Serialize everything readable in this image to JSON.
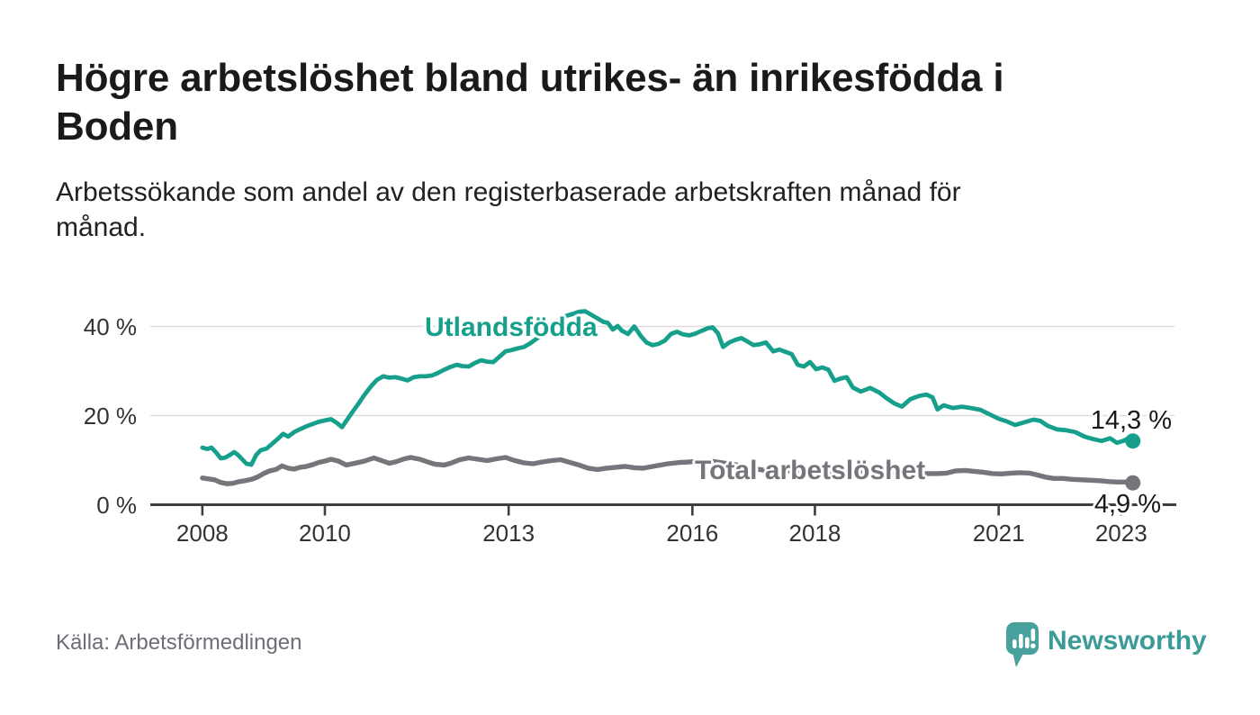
{
  "header": {
    "title": "Högre arbetslöshet bland utrikes- än inrikesfödda i Boden",
    "subtitle": "Arbetssökande som andel av den registerbaserade arbetskraften månad för månad."
  },
  "footer": {
    "source": "Källa: Arbetsförmedlingen",
    "brand": "Newsworthy",
    "brand_icon": "speech-bubble-bar-chart-icon"
  },
  "colors": {
    "accent_teal": "#16a08c",
    "series_gray": "#76757c",
    "grid": "#dcdcdc",
    "axis": "#3e3e3e",
    "tick_label": "#333333",
    "title_text": "#1a1a1a",
    "muted_text": "#6e6c77",
    "logo_teal": "#48a19d",
    "logo_text_teal": "#3b9b97"
  },
  "chart_data": {
    "type": "line",
    "title": "Högre arbetslöshet bland utrikes- än inrikesfödda i Boden",
    "subtitle": "Arbetssökande som andel av den registerbaserade arbetskraften månad för månad.",
    "xlabel": "",
    "ylabel": "",
    "unit": "%",
    "grid": "horizontal",
    "legend_position": "inline-labels",
    "xlim": [
      2007.15,
      2023.9
    ],
    "ylim": [
      0,
      44
    ],
    "x_ticks": [
      {
        "year": 2008,
        "label": "2008"
      },
      {
        "year": 2010,
        "label": "2010"
      },
      {
        "year": 2013,
        "label": "2013"
      },
      {
        "year": 2016,
        "label": "2016"
      },
      {
        "year": 2018,
        "label": "2018"
      },
      {
        "year": 2021,
        "label": "2021"
      },
      {
        "year": 2023,
        "label": "2023"
      }
    ],
    "y_ticks": [
      {
        "value": 0,
        "label": "0 %"
      },
      {
        "value": 20,
        "label": "20 %"
      },
      {
        "value": 40,
        "label": "40 %"
      }
    ],
    "series": [
      {
        "name": "Utlandsfödda",
        "color": "#16a08c",
        "line_width": 4.8,
        "end_label": "14,3 %",
        "end_value": 14.3,
        "points": [
          [
            2008.0,
            12.8
          ],
          [
            2008.08,
            12.5
          ],
          [
            2008.15,
            12.8
          ],
          [
            2008.22,
            11.8
          ],
          [
            2008.3,
            10.4
          ],
          [
            2008.38,
            10.6
          ],
          [
            2008.45,
            11.2
          ],
          [
            2008.52,
            11.8
          ],
          [
            2008.58,
            11.2
          ],
          [
            2008.65,
            10.2
          ],
          [
            2008.72,
            9.2
          ],
          [
            2008.8,
            9.0
          ],
          [
            2008.88,
            11.2
          ],
          [
            2008.95,
            12.2
          ],
          [
            2009.05,
            12.6
          ],
          [
            2009.15,
            13.8
          ],
          [
            2009.25,
            15.0
          ],
          [
            2009.32,
            15.9
          ],
          [
            2009.4,
            15.3
          ],
          [
            2009.5,
            16.3
          ],
          [
            2009.6,
            17.0
          ],
          [
            2009.7,
            17.6
          ],
          [
            2009.8,
            18.1
          ],
          [
            2009.9,
            18.6
          ],
          [
            2010.0,
            18.9
          ],
          [
            2010.1,
            19.2
          ],
          [
            2010.2,
            18.3
          ],
          [
            2010.28,
            17.4
          ],
          [
            2010.36,
            19.0
          ],
          [
            2010.45,
            20.8
          ],
          [
            2010.55,
            22.7
          ],
          [
            2010.65,
            24.7
          ],
          [
            2010.75,
            26.5
          ],
          [
            2010.85,
            28.0
          ],
          [
            2010.95,
            28.8
          ],
          [
            2011.05,
            28.5
          ],
          [
            2011.15,
            28.6
          ],
          [
            2011.25,
            28.3
          ],
          [
            2011.35,
            27.9
          ],
          [
            2011.45,
            28.6
          ],
          [
            2011.55,
            28.8
          ],
          [
            2011.65,
            28.8
          ],
          [
            2011.75,
            29.0
          ],
          [
            2011.85,
            29.6
          ],
          [
            2011.95,
            30.3
          ],
          [
            2012.05,
            30.9
          ],
          [
            2012.15,
            31.4
          ],
          [
            2012.25,
            31.1
          ],
          [
            2012.35,
            31.0
          ],
          [
            2012.45,
            31.8
          ],
          [
            2012.55,
            32.4
          ],
          [
            2012.65,
            32.1
          ],
          [
            2012.75,
            32.0
          ],
          [
            2012.85,
            33.2
          ],
          [
            2012.95,
            34.4
          ],
          [
            2013.05,
            34.7
          ],
          [
            2013.15,
            35.1
          ],
          [
            2013.25,
            35.4
          ],
          [
            2013.35,
            36.2
          ],
          [
            2013.45,
            37.2
          ],
          [
            2013.55,
            38.2
          ],
          [
            2013.65,
            39.4
          ],
          [
            2013.75,
            40.6
          ],
          [
            2013.85,
            41.8
          ],
          [
            2013.95,
            42.4
          ],
          [
            2014.05,
            42.8
          ],
          [
            2014.15,
            43.3
          ],
          [
            2014.25,
            43.4
          ],
          [
            2014.35,
            42.6
          ],
          [
            2014.45,
            41.8
          ],
          [
            2014.55,
            41.0
          ],
          [
            2014.62,
            40.8
          ],
          [
            2014.7,
            39.3
          ],
          [
            2014.78,
            40.1
          ],
          [
            2014.85,
            39.0
          ],
          [
            2014.95,
            38.3
          ],
          [
            2015.05,
            40.0
          ],
          [
            2015.16,
            37.8
          ],
          [
            2015.25,
            36.4
          ],
          [
            2015.35,
            35.8
          ],
          [
            2015.45,
            36.1
          ],
          [
            2015.55,
            36.8
          ],
          [
            2015.65,
            38.3
          ],
          [
            2015.75,
            38.8
          ],
          [
            2015.85,
            38.2
          ],
          [
            2015.95,
            38.0
          ],
          [
            2016.05,
            38.4
          ],
          [
            2016.15,
            39.0
          ],
          [
            2016.25,
            39.6
          ],
          [
            2016.33,
            39.8
          ],
          [
            2016.42,
            38.4
          ],
          [
            2016.5,
            35.4
          ],
          [
            2016.6,
            36.4
          ],
          [
            2016.7,
            37.0
          ],
          [
            2016.8,
            37.4
          ],
          [
            2016.9,
            36.6
          ],
          [
            2017.0,
            35.8
          ],
          [
            2017.1,
            36.0
          ],
          [
            2017.2,
            36.4
          ],
          [
            2017.32,
            34.4
          ],
          [
            2017.42,
            34.8
          ],
          [
            2017.52,
            34.3
          ],
          [
            2017.62,
            33.8
          ],
          [
            2017.72,
            31.4
          ],
          [
            2017.82,
            31.0
          ],
          [
            2017.92,
            32.0
          ],
          [
            2018.02,
            30.4
          ],
          [
            2018.12,
            30.8
          ],
          [
            2018.22,
            30.3
          ],
          [
            2018.32,
            27.8
          ],
          [
            2018.42,
            28.3
          ],
          [
            2018.52,
            28.6
          ],
          [
            2018.62,
            26.3
          ],
          [
            2018.75,
            25.4
          ],
          [
            2018.9,
            26.2
          ],
          [
            2019.05,
            25.2
          ],
          [
            2019.16,
            24.0
          ],
          [
            2019.3,
            22.7
          ],
          [
            2019.42,
            22.0
          ],
          [
            2019.56,
            23.7
          ],
          [
            2019.7,
            24.4
          ],
          [
            2019.82,
            24.7
          ],
          [
            2019.92,
            24.1
          ],
          [
            2020.0,
            21.4
          ],
          [
            2020.1,
            22.3
          ],
          [
            2020.25,
            21.7
          ],
          [
            2020.4,
            22.0
          ],
          [
            2020.55,
            21.7
          ],
          [
            2020.7,
            21.3
          ],
          [
            2020.85,
            20.3
          ],
          [
            2021.0,
            19.3
          ],
          [
            2021.13,
            18.7
          ],
          [
            2021.27,
            17.9
          ],
          [
            2021.42,
            18.5
          ],
          [
            2021.57,
            19.1
          ],
          [
            2021.68,
            18.8
          ],
          [
            2021.8,
            17.7
          ],
          [
            2021.95,
            16.9
          ],
          [
            2022.1,
            16.7
          ],
          [
            2022.25,
            16.3
          ],
          [
            2022.4,
            15.3
          ],
          [
            2022.55,
            14.7
          ],
          [
            2022.68,
            14.3
          ],
          [
            2022.82,
            14.9
          ],
          [
            2022.93,
            13.9
          ],
          [
            2023.03,
            14.3
          ],
          [
            2023.1,
            14.8
          ],
          [
            2023.19,
            14.3
          ]
        ]
      },
      {
        "name": "Total arbetslöshet",
        "color": "#76757c",
        "line_width": 5.4,
        "end_label": "4,9 %",
        "end_value": 4.9,
        "points": [
          [
            2008.0,
            6.0
          ],
          [
            2008.1,
            5.8
          ],
          [
            2008.2,
            5.6
          ],
          [
            2008.3,
            5.0
          ],
          [
            2008.4,
            4.7
          ],
          [
            2008.5,
            4.8
          ],
          [
            2008.6,
            5.2
          ],
          [
            2008.7,
            5.4
          ],
          [
            2008.8,
            5.7
          ],
          [
            2008.9,
            6.2
          ],
          [
            2009.0,
            7.0
          ],
          [
            2009.1,
            7.6
          ],
          [
            2009.2,
            7.9
          ],
          [
            2009.3,
            8.7
          ],
          [
            2009.4,
            8.2
          ],
          [
            2009.5,
            8.0
          ],
          [
            2009.6,
            8.4
          ],
          [
            2009.7,
            8.6
          ],
          [
            2009.8,
            9.0
          ],
          [
            2009.9,
            9.5
          ],
          [
            2010.0,
            9.8
          ],
          [
            2010.1,
            10.2
          ],
          [
            2010.22,
            9.8
          ],
          [
            2010.35,
            8.9
          ],
          [
            2010.45,
            9.2
          ],
          [
            2010.55,
            9.5
          ],
          [
            2010.65,
            9.8
          ],
          [
            2010.8,
            10.5
          ],
          [
            2010.95,
            9.8
          ],
          [
            2011.05,
            9.3
          ],
          [
            2011.15,
            9.6
          ],
          [
            2011.3,
            10.3
          ],
          [
            2011.4,
            10.6
          ],
          [
            2011.55,
            10.2
          ],
          [
            2011.7,
            9.5
          ],
          [
            2011.8,
            9.1
          ],
          [
            2011.95,
            8.9
          ],
          [
            2012.05,
            9.3
          ],
          [
            2012.2,
            10.1
          ],
          [
            2012.35,
            10.5
          ],
          [
            2012.5,
            10.2
          ],
          [
            2012.65,
            9.9
          ],
          [
            2012.8,
            10.3
          ],
          [
            2012.95,
            10.6
          ],
          [
            2013.1,
            9.9
          ],
          [
            2013.25,
            9.4
          ],
          [
            2013.4,
            9.2
          ],
          [
            2013.55,
            9.6
          ],
          [
            2013.7,
            9.9
          ],
          [
            2013.85,
            10.1
          ],
          [
            2014.0,
            9.5
          ],
          [
            2014.15,
            8.9
          ],
          [
            2014.3,
            8.2
          ],
          [
            2014.45,
            7.9
          ],
          [
            2014.6,
            8.2
          ],
          [
            2014.75,
            8.4
          ],
          [
            2014.9,
            8.6
          ],
          [
            2015.05,
            8.3
          ],
          [
            2015.2,
            8.2
          ],
          [
            2015.4,
            8.7
          ],
          [
            2015.6,
            9.2
          ],
          [
            2015.8,
            9.5
          ],
          [
            2015.95,
            9.6
          ],
          [
            2016.1,
            9.8
          ],
          [
            2016.25,
            9.9
          ],
          [
            2016.4,
            9.6
          ],
          [
            2016.55,
            9.3
          ],
          [
            2016.7,
            9.0
          ],
          [
            2016.85,
            8.6
          ],
          [
            2017.0,
            8.1
          ],
          [
            2017.2,
            7.7
          ],
          [
            2017.4,
            7.5
          ],
          [
            2017.6,
            7.6
          ],
          [
            2017.8,
            7.7
          ],
          [
            2018.0,
            7.6
          ],
          [
            2018.2,
            7.5
          ],
          [
            2018.4,
            7.3
          ],
          [
            2018.6,
            7.1
          ],
          [
            2018.8,
            7.2
          ],
          [
            2019.0,
            7.3
          ],
          [
            2019.2,
            7.1
          ],
          [
            2019.4,
            6.9
          ],
          [
            2019.6,
            6.9
          ],
          [
            2019.8,
            7.0
          ],
          [
            2020.0,
            7.0
          ],
          [
            2020.15,
            7.1
          ],
          [
            2020.3,
            7.6
          ],
          [
            2020.45,
            7.7
          ],
          [
            2020.6,
            7.5
          ],
          [
            2020.75,
            7.3
          ],
          [
            2020.9,
            7.0
          ],
          [
            2021.05,
            6.9
          ],
          [
            2021.2,
            7.1
          ],
          [
            2021.35,
            7.2
          ],
          [
            2021.5,
            7.1
          ],
          [
            2021.62,
            6.7
          ],
          [
            2021.76,
            6.2
          ],
          [
            2021.9,
            5.9
          ],
          [
            2022.05,
            5.9
          ],
          [
            2022.2,
            5.7
          ],
          [
            2022.35,
            5.6
          ],
          [
            2022.5,
            5.5
          ],
          [
            2022.65,
            5.4
          ],
          [
            2022.8,
            5.2
          ],
          [
            2022.95,
            5.1
          ],
          [
            2023.08,
            5.1
          ],
          [
            2023.19,
            4.9
          ]
        ]
      }
    ]
  }
}
